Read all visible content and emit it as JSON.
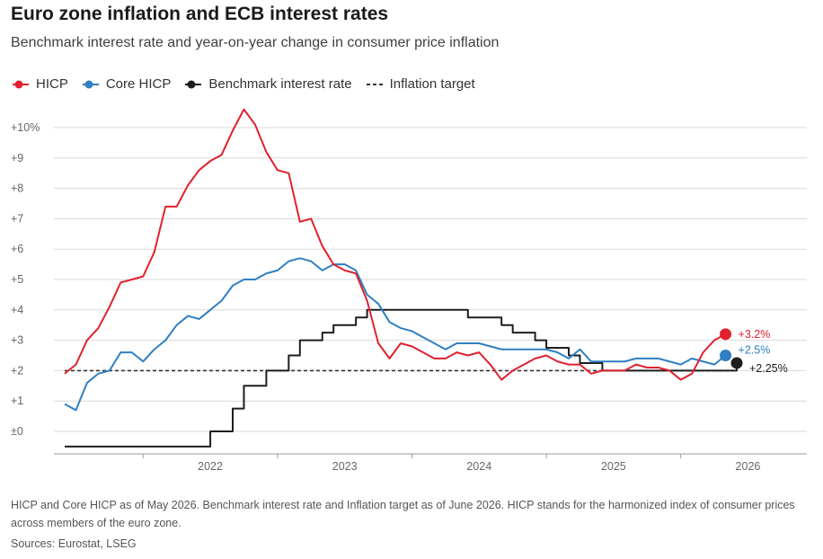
{
  "title": "Euro zone inflation and ECB interest rates",
  "subtitle": "Benchmark interest rate and year-on-year change in consumer price inflation",
  "legend": [
    {
      "label": "HICP",
      "color": "#e0212f",
      "marker": "dot-line"
    },
    {
      "label": "Core HICP",
      "color": "#2f7fc1",
      "marker": "dot-line"
    },
    {
      "label": "Benchmark interest rate",
      "color": "#1e1e1e",
      "marker": "dot-line"
    },
    {
      "label": "Inflation target",
      "color": "#333333",
      "marker": "dashed"
    }
  ],
  "footnote": "HICP and Core HICP as of May 2026. Benchmark interest rate and Inflation target as of June 2026. HICP stands for the harmonized index of consumer prices across members of the euro zone.",
  "sources": "Sources: Eurostat, LSEG",
  "chart_data": {
    "type": "line",
    "ylim": [
      -0.5,
      10.6
    ],
    "y_ticks": [
      {
        "value": 10,
        "label": "+10%"
      },
      {
        "value": 9,
        "label": "+9"
      },
      {
        "value": 8,
        "label": "+8"
      },
      {
        "value": 7,
        "label": "+7"
      },
      {
        "value": 6,
        "label": "+6"
      },
      {
        "value": 5,
        "label": "+5"
      },
      {
        "value": 4,
        "label": "+4"
      },
      {
        "value": 3,
        "label": "+3"
      },
      {
        "value": 2,
        "label": "+2"
      },
      {
        "value": 1,
        "label": "+1"
      },
      {
        "value": 0,
        "label": "±0"
      }
    ],
    "x_ticks": [
      "2022",
      "2023",
      "2024",
      "2025",
      "2026"
    ],
    "grid": true,
    "series": [
      {
        "name": "HICP",
        "color": "#e0212f",
        "end_label": "+3.2%",
        "points": [
          [
            "2021-06",
            1.9
          ],
          [
            "2021-07",
            2.2
          ],
          [
            "2021-08",
            3.0
          ],
          [
            "2021-09",
            3.4
          ],
          [
            "2021-10",
            4.1
          ],
          [
            "2021-11",
            4.9
          ],
          [
            "2021-12",
            5.0
          ],
          [
            "2022-01",
            5.1
          ],
          [
            "2022-02",
            5.9
          ],
          [
            "2022-03",
            7.4
          ],
          [
            "2022-04",
            7.4
          ],
          [
            "2022-05",
            8.1
          ],
          [
            "2022-06",
            8.6
          ],
          [
            "2022-07",
            8.9
          ],
          [
            "2022-08",
            9.1
          ],
          [
            "2022-09",
            9.9
          ],
          [
            "2022-10",
            10.6
          ],
          [
            "2022-11",
            10.1
          ],
          [
            "2022-12",
            9.2
          ],
          [
            "2023-01",
            8.6
          ],
          [
            "2023-02",
            8.5
          ],
          [
            "2023-03",
            6.9
          ],
          [
            "2023-04",
            7.0
          ],
          [
            "2023-05",
            6.1
          ],
          [
            "2023-06",
            5.5
          ],
          [
            "2023-07",
            5.3
          ],
          [
            "2023-08",
            5.2
          ],
          [
            "2023-09",
            4.3
          ],
          [
            "2023-10",
            2.9
          ],
          [
            "2023-11",
            2.4
          ],
          [
            "2023-12",
            2.9
          ],
          [
            "2024-01",
            2.8
          ],
          [
            "2024-02",
            2.6
          ],
          [
            "2024-03",
            2.4
          ],
          [
            "2024-04",
            2.4
          ],
          [
            "2024-05",
            2.6
          ],
          [
            "2024-06",
            2.5
          ],
          [
            "2024-07",
            2.6
          ],
          [
            "2024-08",
            2.2
          ],
          [
            "2024-09",
            1.7
          ],
          [
            "2024-10",
            2.0
          ],
          [
            "2024-11",
            2.2
          ],
          [
            "2024-12",
            2.4
          ],
          [
            "2025-01",
            2.5
          ],
          [
            "2025-02",
            2.3
          ],
          [
            "2025-03",
            2.2
          ],
          [
            "2025-04",
            2.2
          ],
          [
            "2025-05",
            1.9
          ],
          [
            "2025-06",
            2.0
          ],
          [
            "2025-07",
            2.0
          ],
          [
            "2025-08",
            2.0
          ],
          [
            "2025-09",
            2.2
          ],
          [
            "2025-10",
            2.1
          ],
          [
            "2025-11",
            2.1
          ],
          [
            "2025-12",
            2.0
          ],
          [
            "2026-01",
            1.7
          ],
          [
            "2026-02",
            1.9
          ],
          [
            "2026-03",
            2.6
          ],
          [
            "2026-04",
            3.0
          ],
          [
            "2026-05",
            3.2
          ]
        ]
      },
      {
        "name": "Core HICP",
        "color": "#2f7fc1",
        "end_label": "+2.5%",
        "points": [
          [
            "2021-06",
            0.9
          ],
          [
            "2021-07",
            0.7
          ],
          [
            "2021-08",
            1.6
          ],
          [
            "2021-09",
            1.9
          ],
          [
            "2021-10",
            2.0
          ],
          [
            "2021-11",
            2.6
          ],
          [
            "2021-12",
            2.6
          ],
          [
            "2022-01",
            2.3
          ],
          [
            "2022-02",
            2.7
          ],
          [
            "2022-03",
            3.0
          ],
          [
            "2022-04",
            3.5
          ],
          [
            "2022-05",
            3.8
          ],
          [
            "2022-06",
            3.7
          ],
          [
            "2022-07",
            4.0
          ],
          [
            "2022-08",
            4.3
          ],
          [
            "2022-09",
            4.8
          ],
          [
            "2022-10",
            5.0
          ],
          [
            "2022-11",
            5.0
          ],
          [
            "2022-12",
            5.2
          ],
          [
            "2023-01",
            5.3
          ],
          [
            "2023-02",
            5.6
          ],
          [
            "2023-03",
            5.7
          ],
          [
            "2023-04",
            5.6
          ],
          [
            "2023-05",
            5.3
          ],
          [
            "2023-06",
            5.5
          ],
          [
            "2023-07",
            5.5
          ],
          [
            "2023-08",
            5.3
          ],
          [
            "2023-09",
            4.5
          ],
          [
            "2023-10",
            4.2
          ],
          [
            "2023-11",
            3.6
          ],
          [
            "2023-12",
            3.4
          ],
          [
            "2024-01",
            3.3
          ],
          [
            "2024-02",
            3.1
          ],
          [
            "2024-03",
            2.9
          ],
          [
            "2024-04",
            2.7
          ],
          [
            "2024-05",
            2.9
          ],
          [
            "2024-06",
            2.9
          ],
          [
            "2024-07",
            2.9
          ],
          [
            "2024-08",
            2.8
          ],
          [
            "2024-09",
            2.7
          ],
          [
            "2024-10",
            2.7
          ],
          [
            "2024-11",
            2.7
          ],
          [
            "2024-12",
            2.7
          ],
          [
            "2025-01",
            2.7
          ],
          [
            "2025-02",
            2.6
          ],
          [
            "2025-03",
            2.4
          ],
          [
            "2025-04",
            2.7
          ],
          [
            "2025-05",
            2.3
          ],
          [
            "2025-06",
            2.3
          ],
          [
            "2025-07",
            2.3
          ],
          [
            "2025-08",
            2.3
          ],
          [
            "2025-09",
            2.4
          ],
          [
            "2025-10",
            2.4
          ],
          [
            "2025-11",
            2.4
          ],
          [
            "2025-12",
            2.3
          ],
          [
            "2026-01",
            2.2
          ],
          [
            "2026-02",
            2.4
          ],
          [
            "2026-03",
            2.3
          ],
          [
            "2026-04",
            2.2
          ],
          [
            "2026-05",
            2.5
          ]
        ]
      },
      {
        "name": "Benchmark interest rate",
        "color": "#1e1e1e",
        "end_label": "+2.25%",
        "step": true,
        "end": "2026-06",
        "points": [
          [
            "2021-06",
            -0.5
          ],
          [
            "2022-07",
            0.0
          ],
          [
            "2022-09",
            0.75
          ],
          [
            "2022-10",
            1.5
          ],
          [
            "2022-12",
            2.0
          ],
          [
            "2023-02",
            2.5
          ],
          [
            "2023-03",
            3.0
          ],
          [
            "2023-05",
            3.25
          ],
          [
            "2023-06",
            3.5
          ],
          [
            "2023-08",
            3.75
          ],
          [
            "2023-09",
            4.0
          ],
          [
            "2024-06",
            3.75
          ],
          [
            "2024-09",
            3.5
          ],
          [
            "2024-10",
            3.25
          ],
          [
            "2024-12",
            3.0
          ],
          [
            "2025-01",
            2.75
          ],
          [
            "2025-03",
            2.5
          ],
          [
            "2025-04",
            2.25
          ],
          [
            "2025-06",
            2.0
          ],
          [
            "2026-06",
            2.25
          ]
        ]
      },
      {
        "name": "Inflation target",
        "color": "#333333",
        "dashed": true,
        "points": [
          [
            "2021-06",
            2.0
          ],
          [
            "2026-06",
            2.0
          ]
        ]
      }
    ]
  }
}
